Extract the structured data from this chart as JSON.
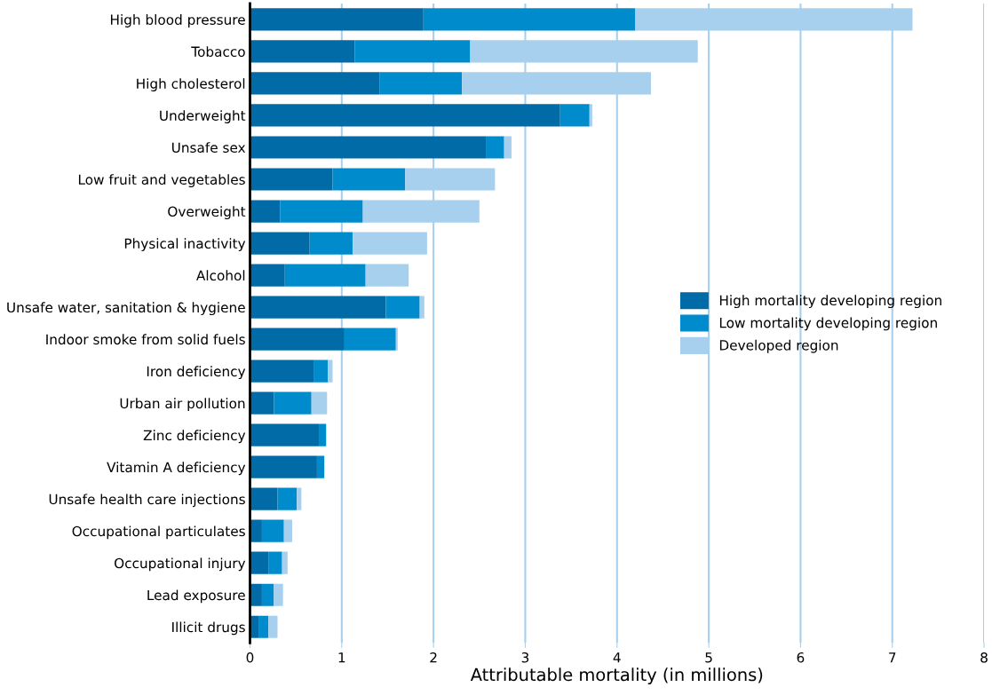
{
  "chart_data": {
    "type": "bar",
    "orientation": "horizontal",
    "stacked": true,
    "xlabel": "Attributable mortality (in millions)",
    "categories": [
      "High blood pressure",
      "Tobacco",
      "High cholesterol",
      "Underweight",
      "Unsafe sex",
      "Low fruit and vegetables",
      "Overweight",
      "Physical inactivity",
      "Alcohol",
      "Unsafe water, sanitation & hygiene",
      "Indoor smoke from solid fuels",
      "Iron deficiency",
      "Urban air pollution",
      "Zinc deficiency",
      "Vitamin A deficiency",
      "Unsafe health care injections",
      "Occupational particulates",
      "Occupational injury",
      "Lead exposure",
      "Illicit drugs"
    ],
    "series": [
      {
        "name": "High mortality developing region",
        "color": "#006ba6",
        "values": [
          1.89,
          1.14,
          1.41,
          3.38,
          2.57,
          0.9,
          0.33,
          0.65,
          0.38,
          1.48,
          1.03,
          0.7,
          0.26,
          0.75,
          0.73,
          0.3,
          0.13,
          0.2,
          0.13,
          0.1
        ]
      },
      {
        "name": "Low mortality developing region",
        "color": "#008ccc",
        "values": [
          2.31,
          1.26,
          0.9,
          0.32,
          0.2,
          0.79,
          0.9,
          0.47,
          0.88,
          0.37,
          0.56,
          0.15,
          0.41,
          0.08,
          0.08,
          0.21,
          0.24,
          0.15,
          0.13,
          0.1
        ]
      },
      {
        "name": "Developed region",
        "color": "#a6d0ed",
        "values": [
          3.02,
          2.48,
          2.06,
          0.03,
          0.08,
          0.98,
          1.27,
          0.81,
          0.47,
          0.05,
          0.02,
          0.05,
          0.17,
          0,
          0,
          0.05,
          0.09,
          0.06,
          0.1,
          0.1
        ]
      }
    ],
    "xlim": [
      0,
      8
    ],
    "xticks": [
      0,
      1,
      2,
      3,
      4,
      5,
      6,
      7,
      8
    ],
    "grid": "x",
    "legend": "right"
  }
}
